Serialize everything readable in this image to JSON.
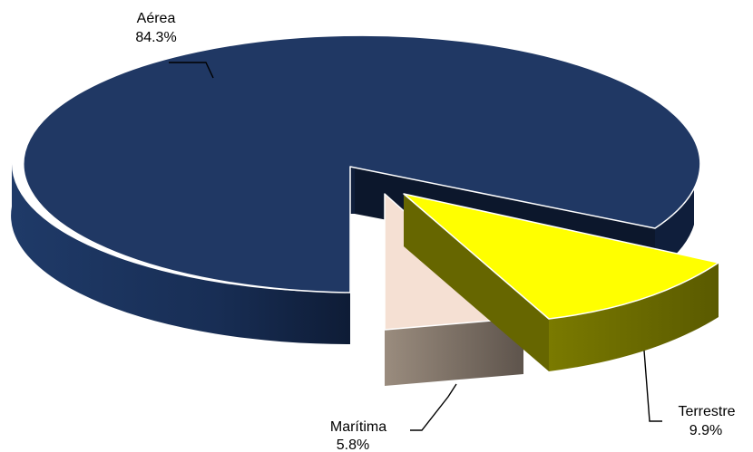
{
  "chart_data": {
    "type": "pie",
    "title": "",
    "style": "3d-exploded",
    "slices": [
      {
        "label": "Aérea",
        "value": 84.3,
        "value_label": "84.3%",
        "top_color": "#203864",
        "side_color": "#14264a"
      },
      {
        "label": "Terrestre",
        "value": 9.9,
        "value_label": "9.9%",
        "top_color": "#ffff00",
        "side_color": "#666600"
      },
      {
        "label": "Marítima",
        "value": 5.8,
        "value_label": "5.8%",
        "top_color": "#f5e0d3",
        "side_color": "#8a7d70"
      }
    ]
  }
}
